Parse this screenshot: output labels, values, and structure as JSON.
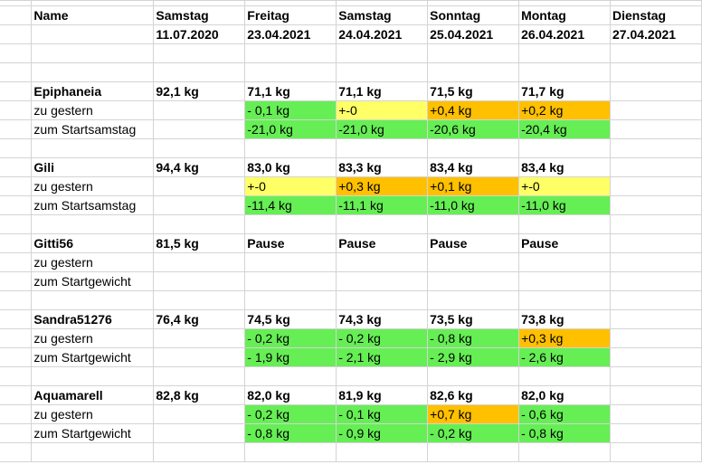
{
  "colors": {
    "green": "#66ee55",
    "yellow": "#ffff66",
    "orange": "#ffc000",
    "gridline": "#d4d4d4"
  },
  "header": {
    "row1": [
      "Name",
      "Samstag",
      "Freitag",
      "Samstag",
      "Sonntag",
      "Montag",
      "Dienstag"
    ],
    "row2": [
      "",
      "11.07.2020",
      "23.04.2021",
      "24.04.2021",
      "25.04.2021",
      "26.04.2021",
      "27.04.2021"
    ]
  },
  "groups": [
    {
      "name": "Epiphaneia",
      "weights": [
        "92,1 kg",
        "71,1 kg",
        "71,1 kg",
        "71,5 kg",
        "71,7 kg",
        ""
      ],
      "rows": [
        {
          "label": "zu gestern",
          "cells": [
            {
              "v": "",
              "c": ""
            },
            {
              "v": "- 0,1 kg",
              "c": "green"
            },
            {
              "v": "+-0",
              "c": "yellow"
            },
            {
              "v": "+0,4 kg",
              "c": "orange"
            },
            {
              "v": "+0,2 kg",
              "c": "orange"
            },
            {
              "v": "",
              "c": ""
            }
          ]
        },
        {
          "label": "zum Startsamstag",
          "cells": [
            {
              "v": "",
              "c": ""
            },
            {
              "v": "-21,0 kg",
              "c": "green"
            },
            {
              "v": "-21,0 kg",
              "c": "green"
            },
            {
              "v": "-20,6 kg",
              "c": "green"
            },
            {
              "v": "-20,4 kg",
              "c": "green"
            },
            {
              "v": "",
              "c": ""
            }
          ]
        }
      ]
    },
    {
      "name": "Gili",
      "weights": [
        "94,4 kg",
        "83,0 kg",
        "83,3 kg",
        "83,4 kg",
        "83,4 kg",
        ""
      ],
      "rows": [
        {
          "label": "zu gestern",
          "cells": [
            {
              "v": "",
              "c": ""
            },
            {
              "v": "+-0",
              "c": "yellow"
            },
            {
              "v": "+0,3 kg",
              "c": "orange"
            },
            {
              "v": "+0,1 kg",
              "c": "orange"
            },
            {
              "v": "+-0",
              "c": "yellow"
            },
            {
              "v": "",
              "c": ""
            }
          ]
        },
        {
          "label": "zum Startsamstag",
          "cells": [
            {
              "v": "",
              "c": ""
            },
            {
              "v": "-11,4 kg",
              "c": "green"
            },
            {
              "v": "-11,1 kg",
              "c": "green"
            },
            {
              "v": "-11,0 kg",
              "c": "green"
            },
            {
              "v": "-11,0 kg",
              "c": "green"
            },
            {
              "v": "",
              "c": ""
            }
          ]
        }
      ]
    },
    {
      "name": "Gitti56",
      "weights": [
        "81,5 kg",
        "Pause",
        "Pause",
        "Pause",
        "Pause",
        ""
      ],
      "rows": [
        {
          "label": "zu gestern",
          "cells": [
            {
              "v": "",
              "c": ""
            },
            {
              "v": "",
              "c": ""
            },
            {
              "v": "",
              "c": ""
            },
            {
              "v": "",
              "c": ""
            },
            {
              "v": "",
              "c": ""
            },
            {
              "v": "",
              "c": ""
            }
          ]
        },
        {
          "label": "zum Startgewicht",
          "cells": [
            {
              "v": "",
              "c": ""
            },
            {
              "v": "",
              "c": ""
            },
            {
              "v": "",
              "c": ""
            },
            {
              "v": "",
              "c": ""
            },
            {
              "v": "",
              "c": ""
            },
            {
              "v": "",
              "c": ""
            }
          ]
        }
      ]
    },
    {
      "name": "Sandra51276",
      "weights": [
        "76,4 kg",
        "74,5 kg",
        "74,3 kg",
        "73,5 kg",
        "73,8 kg",
        ""
      ],
      "rows": [
        {
          "label": "zu gestern",
          "cells": [
            {
              "v": "",
              "c": ""
            },
            {
              "v": "- 0,2 kg",
              "c": "green"
            },
            {
              "v": "- 0,2 kg",
              "c": "green"
            },
            {
              "v": "- 0,8 kg",
              "c": "green"
            },
            {
              "v": "+0,3 kg",
              "c": "orange"
            },
            {
              "v": "",
              "c": ""
            }
          ]
        },
        {
          "label": "zum Startgewicht",
          "cells": [
            {
              "v": "",
              "c": ""
            },
            {
              "v": "- 1,9 kg",
              "c": "green"
            },
            {
              "v": "- 2,1 kg",
              "c": "green"
            },
            {
              "v": "- 2,9 kg",
              "c": "green"
            },
            {
              "v": "- 2,6 kg",
              "c": "green"
            },
            {
              "v": "",
              "c": ""
            }
          ]
        }
      ]
    },
    {
      "name": "Aquamarell",
      "weights": [
        "82,8 kg",
        "82,0 kg",
        "81,9 kg",
        "82,6 kg",
        "82,0 kg",
        ""
      ],
      "rows": [
        {
          "label": "zu gestern",
          "cells": [
            {
              "v": "",
              "c": ""
            },
            {
              "v": "- 0,2 kg",
              "c": "green"
            },
            {
              "v": "- 0,1 kg",
              "c": "green"
            },
            {
              "v": "+0,7 kg",
              "c": "orange"
            },
            {
              "v": "- 0,6 kg",
              "c": "green"
            },
            {
              "v": "",
              "c": ""
            }
          ]
        },
        {
          "label": "zum Startgewicht",
          "cells": [
            {
              "v": "",
              "c": ""
            },
            {
              "v": "- 0,8 kg",
              "c": "green"
            },
            {
              "v": "- 0,9 kg",
              "c": "green"
            },
            {
              "v": "- 0,2 kg",
              "c": "green"
            },
            {
              "v": "- 0,8 kg",
              "c": "green"
            },
            {
              "v": "",
              "c": ""
            }
          ]
        }
      ]
    }
  ]
}
